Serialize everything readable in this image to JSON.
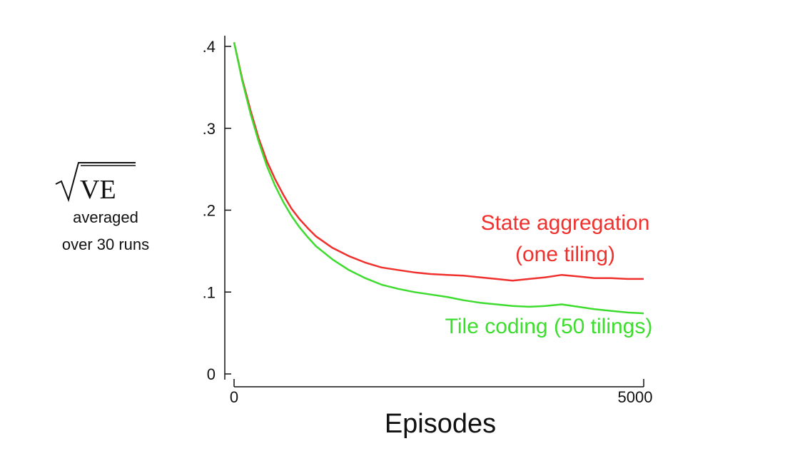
{
  "chart_data": {
    "type": "line",
    "xlabel": "Episodes",
    "ylabel": "VE",
    "ylabel_sub": [
      "averaged",
      "over 30 runs"
    ],
    "xlim": [
      0,
      5000
    ],
    "ylim": [
      0,
      0.4
    ],
    "x_ticks": [
      0,
      5000
    ],
    "x_tick_labels": [
      "0",
      "5000"
    ],
    "y_ticks": [
      0,
      0.1,
      0.2,
      0.3,
      0.4
    ],
    "y_tick_labels": [
      "0",
      ".1",
      ".2",
      ".3",
      ".4"
    ],
    "grid": false,
    "series": [
      {
        "name": "State aggregation (one tiling)",
        "label_lines": [
          "State aggregation",
          "(one tiling)"
        ],
        "color": "#f0302c",
        "x": [
          0,
          100,
          200,
          300,
          400,
          500,
          600,
          700,
          800,
          900,
          1000,
          1200,
          1400,
          1600,
          1800,
          2000,
          2200,
          2400,
          2600,
          2800,
          3000,
          3200,
          3400,
          3600,
          3800,
          4000,
          4200,
          4400,
          4600,
          4800,
          5000
        ],
        "values": [
          0.405,
          0.36,
          0.322,
          0.288,
          0.26,
          0.238,
          0.219,
          0.202,
          0.189,
          0.178,
          0.168,
          0.154,
          0.144,
          0.136,
          0.13,
          0.127,
          0.124,
          0.122,
          0.121,
          0.12,
          0.118,
          0.116,
          0.114,
          0.116,
          0.118,
          0.121,
          0.119,
          0.117,
          0.117,
          0.116,
          0.116
        ]
      },
      {
        "name": "Tile coding (50 tilings)",
        "label_lines": [
          "Tile coding (50 tilings)"
        ],
        "color": "#3ddc2e",
        "x": [
          0,
          100,
          200,
          300,
          400,
          500,
          600,
          700,
          800,
          900,
          1000,
          1200,
          1400,
          1600,
          1800,
          2000,
          2200,
          2400,
          2600,
          2800,
          3000,
          3200,
          3400,
          3600,
          3800,
          4000,
          4200,
          4400,
          4600,
          4800,
          5000
        ],
        "values": [
          0.405,
          0.358,
          0.318,
          0.284,
          0.254,
          0.23,
          0.21,
          0.193,
          0.179,
          0.167,
          0.156,
          0.14,
          0.127,
          0.117,
          0.109,
          0.104,
          0.1,
          0.097,
          0.094,
          0.09,
          0.087,
          0.085,
          0.083,
          0.082,
          0.083,
          0.085,
          0.082,
          0.079,
          0.077,
          0.075,
          0.074
        ]
      }
    ]
  }
}
